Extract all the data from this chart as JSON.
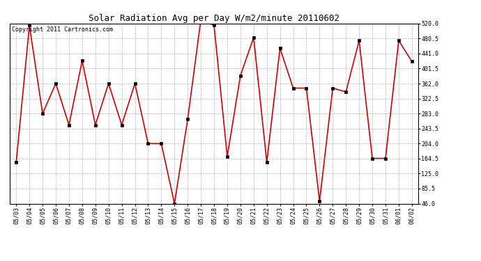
{
  "title": "Solar Radiation Avg per Day W/m2/minute 20110602",
  "copyright": "Copyright 2011 Cartronics.com",
  "dates": [
    "05/03",
    "05/04",
    "05/05",
    "05/06",
    "05/07",
    "05/08",
    "05/09",
    "05/10",
    "05/11",
    "05/12",
    "05/13",
    "05/14",
    "05/15",
    "05/16",
    "05/17",
    "05/18",
    "05/19",
    "05/20",
    "05/21",
    "05/22",
    "05/23",
    "05/24",
    "05/25",
    "05/26",
    "05/27",
    "05/28",
    "05/29",
    "05/30",
    "05/31",
    "06/01",
    "06/02"
  ],
  "values": [
    155,
    515,
    283,
    362,
    253,
    422,
    253,
    362,
    253,
    362,
    204,
    204,
    46,
    268,
    530,
    515,
    170,
    383,
    483,
    155,
    455,
    350,
    350,
    52,
    350,
    340,
    475,
    165,
    165,
    475,
    420
  ],
  "line_color": "#cc0000",
  "marker_color": "#000000",
  "bg_color": "#ffffff",
  "grid_color": "#aaaaaa",
  "ylim_min": 46.0,
  "ylim_max": 520.0,
  "yticks": [
    46.0,
    85.5,
    125.0,
    164.5,
    204.0,
    243.5,
    283.0,
    322.5,
    362.0,
    401.5,
    441.0,
    480.5,
    520.0
  ],
  "title_fontsize": 9,
  "tick_fontsize": 6,
  "copyright_fontsize": 6
}
